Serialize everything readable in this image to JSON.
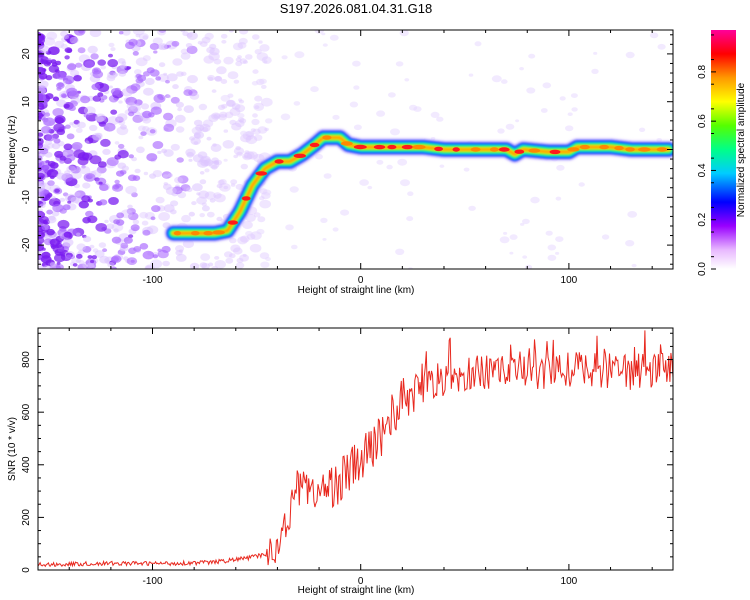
{
  "title": "S197.2026.081.04.31.G18",
  "chart_data": [
    {
      "type": "heatmap",
      "xlabel": "Height of straight line (km)",
      "ylabel": "Frequency (Hz)",
      "xlim": [
        -155,
        150
      ],
      "ylim": [
        -25,
        25
      ],
      "x_ticks": [
        -100,
        0,
        100
      ],
      "y_ticks": [
        -20,
        -10,
        0,
        10,
        20
      ],
      "track": {
        "x": [
          -90,
          -80,
          -70,
          -64,
          -58,
          -52,
          -46,
          -40,
          -34,
          -28,
          -22,
          -18,
          -14,
          -10,
          -6,
          0,
          10,
          20,
          30,
          40,
          50,
          60,
          70,
          74,
          78,
          90,
          100,
          104,
          110,
          120,
          130,
          148
        ],
        "y": [
          -17.5,
          -17.5,
          -17.5,
          -17,
          -13,
          -7.5,
          -4,
          -2.5,
          -2.5,
          -1,
          1,
          2.5,
          2.5,
          2.5,
          1,
          0.5,
          0.5,
          0.5,
          0.5,
          0,
          0,
          0,
          0,
          -1,
          0,
          -0.5,
          -0.5,
          0.5,
          0.5,
          0.5,
          0,
          0
        ]
      },
      "colorbar": {
        "label": "Normalized spectral amplitude",
        "ticks": [
          "0.0",
          "0.2",
          "0.4",
          "0.6",
          "0.8"
        ],
        "range": [
          0,
          0.97
        ],
        "colors": [
          "#ffffff",
          "#cc33ff",
          "#0000ff",
          "#00ccff",
          "#00ff66",
          "#66ff00",
          "#ffff00",
          "#ff9900",
          "#ff0000",
          "#ff0099"
        ]
      }
    },
    {
      "type": "line",
      "xlabel": "Height of straight line (km)",
      "ylabel": "SNR (10 * v/v)",
      "xlim": [
        -155,
        150
      ],
      "ylim": [
        0,
        920
      ],
      "x_ticks": [
        -100,
        0,
        100
      ],
      "y_ticks": [
        0,
        200,
        400,
        600,
        800
      ],
      "color": "#e8281e",
      "series": {
        "name": "SNR",
        "x": [
          -155,
          -120,
          -90,
          -70,
          -55,
          -45,
          -40,
          -37,
          -35,
          -33,
          -30,
          -28,
          -25,
          -22,
          -18,
          -14,
          -10,
          -5,
          0,
          5,
          10,
          15,
          20,
          25,
          30,
          35,
          40,
          50,
          60,
          70,
          80,
          90,
          100,
          110,
          120,
          130,
          140,
          150
        ],
        "y": [
          20,
          25,
          25,
          30,
          45,
          60,
          80,
          200,
          170,
          250,
          320,
          380,
          300,
          290,
          300,
          320,
          340,
          380,
          410,
          460,
          520,
          590,
          640,
          680,
          700,
          720,
          730,
          740,
          750,
          755,
          760,
          750,
          760,
          765,
          760,
          750,
          760,
          760
        ]
      }
    }
  ]
}
